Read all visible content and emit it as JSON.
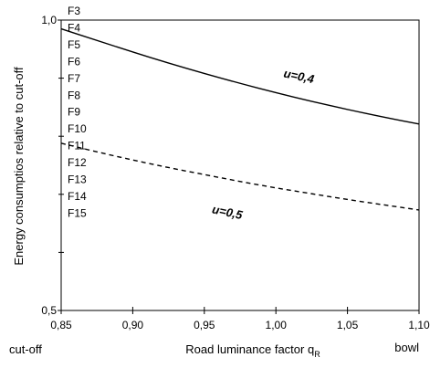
{
  "chart_data": {
    "type": "line",
    "title": "",
    "xlabel": "Road luminance factor q",
    "xlabel_subscript": "R",
    "ylabel": "Energy consumptios relative to cut-off",
    "xlim": [
      0.85,
      1.1
    ],
    "ylim": [
      0.5,
      1.0
    ],
    "x_ticks": [
      0.85,
      0.9,
      0.95,
      1.0,
      1.05,
      1.1
    ],
    "x_tick_labels": [
      "0,85",
      "0,90",
      "0,95",
      "1,00",
      "1,05",
      "1,10"
    ],
    "y_tick_labels": [
      {
        "value": 1.0,
        "label": "1,0"
      },
      {
        "value": 0.5,
        "label": "0,5"
      }
    ],
    "y_minor_ticks": [
      0.9,
      0.8,
      0.7,
      0.6
    ],
    "grid": false,
    "legend": "none",
    "x_end_labels": {
      "left": "cut-off",
      "right": "bowl"
    },
    "annotations": [
      "F3",
      "F4",
      "F5",
      "F6",
      "F7",
      "F8",
      "F9",
      "F10",
      "F11",
      "F12",
      "F13",
      "F14",
      "F15"
    ],
    "series": [
      {
        "name": "u=0,4",
        "style": "solid",
        "x": [
          0.85,
          0.875,
          0.9,
          0.925,
          0.95,
          0.975,
          1.0,
          1.025,
          1.05,
          1.075,
          1.1
        ],
        "values": [
          0.985,
          0.965,
          0.945,
          0.926,
          0.908,
          0.891,
          0.875,
          0.86,
          0.846,
          0.833,
          0.821
        ]
      },
      {
        "name": "u=0,5",
        "style": "dashed",
        "x": [
          0.85,
          0.875,
          0.9,
          0.925,
          0.95,
          0.975,
          1.0,
          1.025,
          1.05,
          1.075,
          1.1
        ],
        "values": [
          0.788,
          0.773,
          0.759,
          0.746,
          0.734,
          0.722,
          0.711,
          0.701,
          0.691,
          0.682,
          0.673
        ]
      }
    ]
  }
}
